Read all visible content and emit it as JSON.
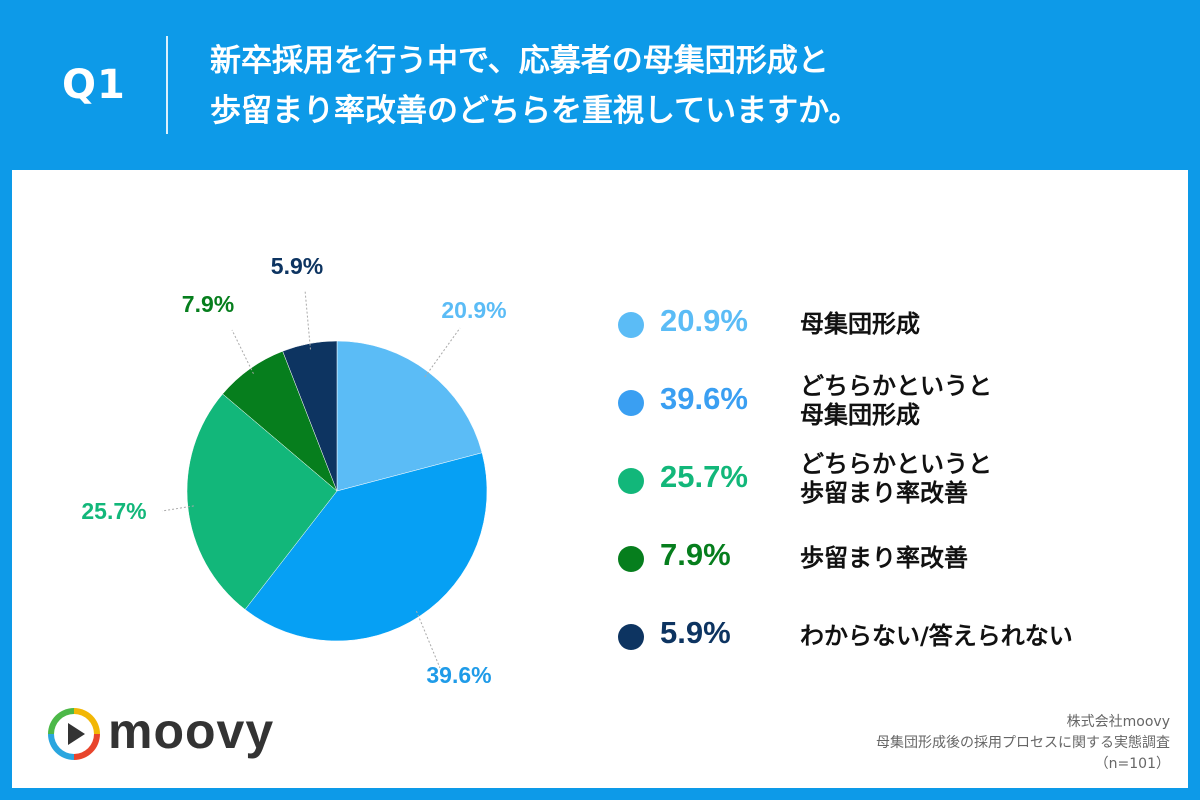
{
  "header": {
    "q_label": "Q1",
    "title_line1": "新卒採用を行う中で、応募者の母集団形成と",
    "title_line2": "歩留まり率改善のどちらを重視していますか。"
  },
  "chart_data": {
    "type": "pie",
    "title": "新卒採用を行う中で、応募者の母集団形成と歩留まり率改善のどちらを重視していますか。",
    "slices": [
      {
        "label": "母集団形成",
        "value": 20.9,
        "display": "20.9%",
        "color": "#5bbcf6"
      },
      {
        "label": "どちらかというと\n母集団形成",
        "value": 39.6,
        "display": "39.6%",
        "color": "#06a0f4"
      },
      {
        "label": "どちらかというと\n歩留まり率改善",
        "value": 25.7,
        "display": "25.7%",
        "color": "#12b77a"
      },
      {
        "label": "歩留まり率改善",
        "value": 7.9,
        "display": "7.9%",
        "color": "#067e1d"
      },
      {
        "label": "わからない/答えられない",
        "value": 5.9,
        "display": "5.9%",
        "color": "#0d3461"
      }
    ],
    "legend_position": "right"
  },
  "legend_colors": [
    "#5bbcf6",
    "#3a9ff2",
    "#12b77a",
    "#067e1d",
    "#0d3461"
  ],
  "label_colors": [
    "#5bbcf6",
    "#1f9be8",
    "#12b77a",
    "#067e1d",
    "#0d3461"
  ],
  "logo": {
    "text": "moovy"
  },
  "source": {
    "company": "株式会社moovy",
    "survey": "母集団形成後の採用プロセスに関する実態調査",
    "n": "（n=101）"
  }
}
